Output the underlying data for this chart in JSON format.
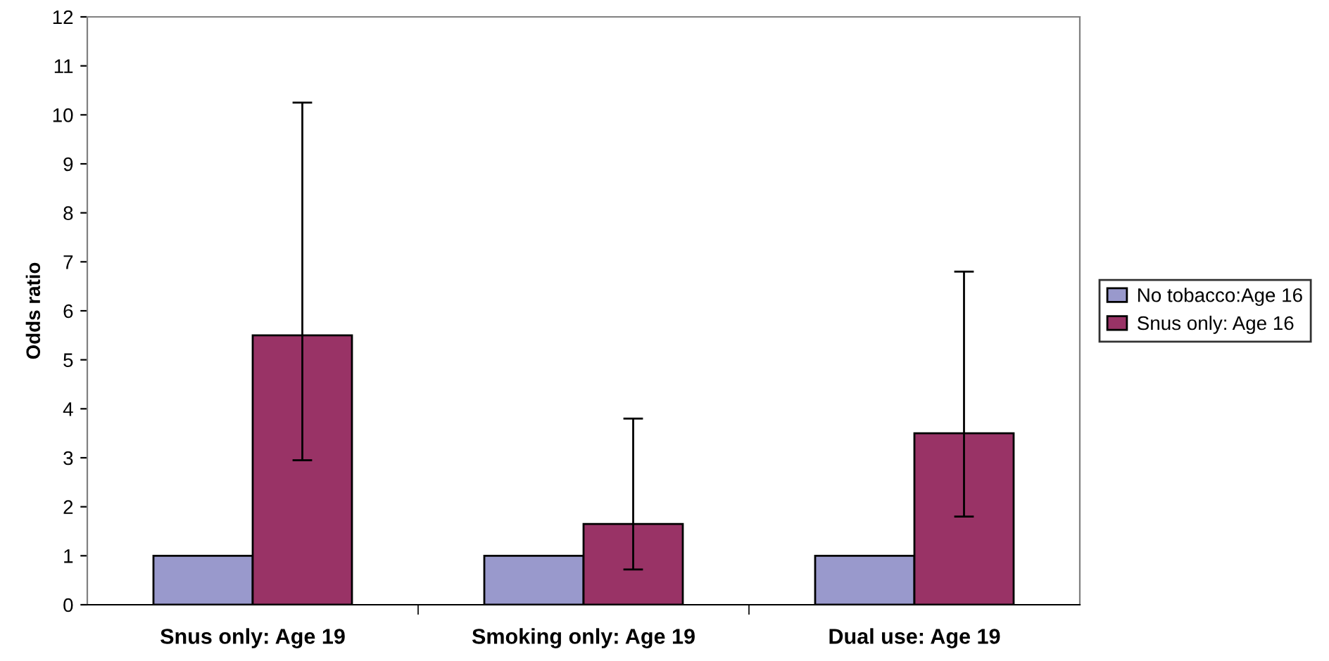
{
  "chart_data": {
    "type": "bar",
    "ylabel": "Odds ratio",
    "categories": [
      "Snus only: Age 19",
      "Smoking only: Age 19",
      "Dual use: Age 19"
    ],
    "series": [
      {
        "name": "No tobacco:Age 16",
        "color": "#9999cc",
        "values": [
          1,
          1,
          1
        ]
      },
      {
        "name": "Snus only: Age 16",
        "color": "#993366",
        "values": [
          5.5,
          1.65,
          3.5
        ],
        "errors": [
          [
            2.95,
            10.25
          ],
          [
            0.72,
            3.8
          ],
          [
            1.8,
            6.8
          ]
        ]
      }
    ],
    "ylim": [
      0,
      12
    ],
    "yticks": [
      0,
      1,
      2,
      3,
      4,
      5,
      6,
      7,
      8,
      9,
      10,
      11,
      12
    ],
    "grid": false,
    "legend": "right"
  }
}
